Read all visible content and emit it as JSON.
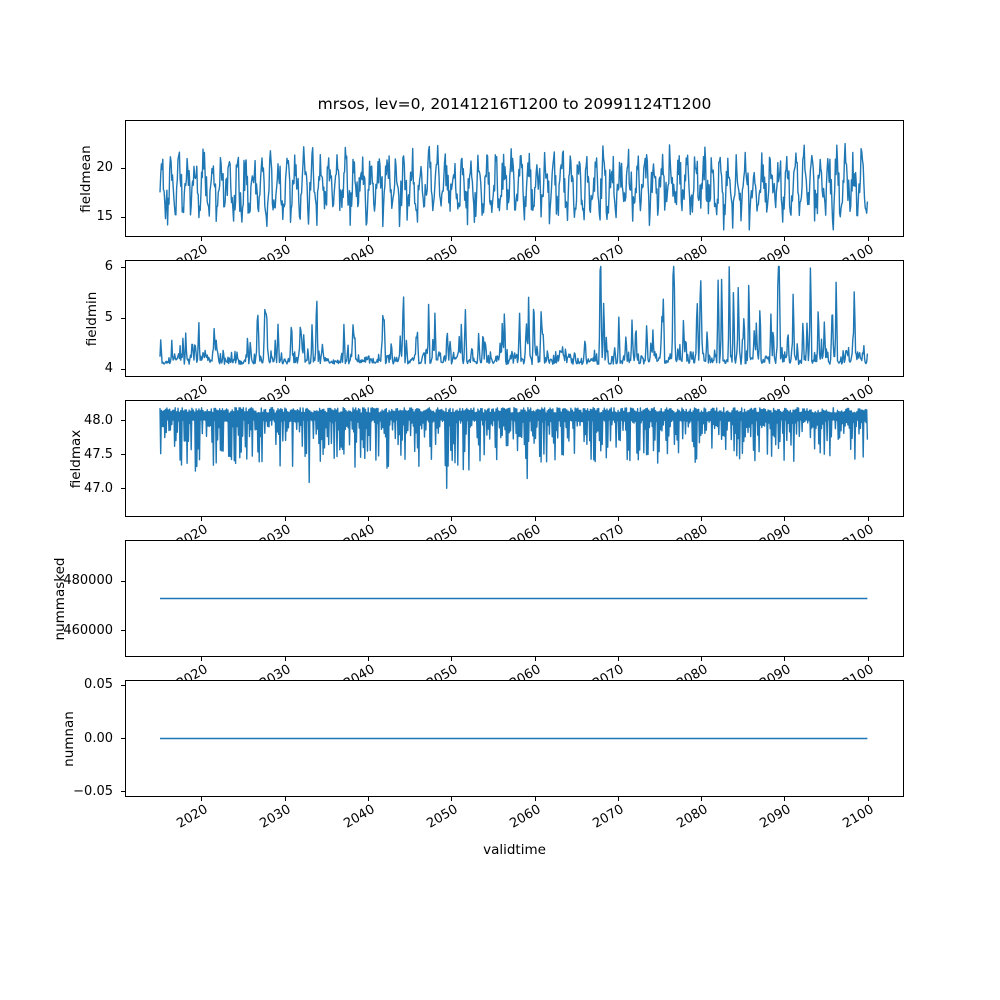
{
  "figure": {
    "title": "mrsos, lev=0, 20141216T1200 to 20991124T1200",
    "xlabel": "validtime",
    "background": "#ffffff",
    "line_color": "#1f77b4",
    "frame_color": "#000000"
  },
  "x_axis": {
    "label": "validtime",
    "lim": [
      2010.76,
      2104.3
    ],
    "ticks": [
      2020,
      2030,
      2040,
      2050,
      2060,
      2070,
      2080,
      2090,
      2100
    ],
    "tick_labels": [
      "2020",
      "2030",
      "2040",
      "2050",
      "2060",
      "2070",
      "2080",
      "2090",
      "2100"
    ],
    "tick_label_rotation_deg": 30,
    "data_start": 2014.96,
    "data_end": 2099.9
  },
  "chart_data": [
    {
      "type": "line",
      "ylabel": "fieldmean",
      "ylim": [
        12.95,
        24.95
      ],
      "yticks": [
        {
          "value": 20,
          "label": "20"
        },
        {
          "value": 15,
          "label": "15"
        }
      ],
      "grid": false,
      "legend": "none",
      "series": {
        "name": "fieldmean",
        "kind": "seasonal_noise",
        "n_points": 1020,
        "base": 18.2,
        "seasonal_amplitude": 2.3,
        "noise_scale": 2.2,
        "value_range": [
          13.6,
          24.4
        ],
        "seed": 101,
        "description": "noisy annual cycle oscillating ~14-24, roughly stationary 2015-2100"
      }
    },
    {
      "type": "line",
      "ylabel": "fieldmin",
      "ylim": [
        3.85,
        6.14
      ],
      "yticks": [
        {
          "value": 6,
          "label": "6"
        },
        {
          "value": 5,
          "label": "5"
        },
        {
          "value": 4,
          "label": "4"
        }
      ],
      "grid": false,
      "legend": "none",
      "series": {
        "name": "fieldmin",
        "kind": "spiky_up",
        "n_points": 1020,
        "base": 4.08,
        "bump_scale": 0.22,
        "spike_scale": 1.9,
        "spike_growth": [
          0.3,
          1.1
        ],
        "value_range": [
          3.97,
          6.03
        ],
        "seed": 202,
        "description": "baseline ~4.0-4.3 with upward spikes growing over time, peaks near 5.9 (~2048) and 6.0 (~2081)"
      }
    },
    {
      "type": "line",
      "ylabel": "fieldmax",
      "ylim": [
        46.59,
        48.3
      ],
      "yticks": [
        {
          "value": 48.0,
          "label": "48.0"
        },
        {
          "value": 47.5,
          "label": "47.5"
        },
        {
          "value": 47.0,
          "label": "47.0"
        }
      ],
      "grid": false,
      "legend": "none",
      "series": {
        "name": "fieldmax",
        "kind": "spiky_down",
        "n_points": 1020,
        "top": 48.15,
        "dip_scale": 0.78,
        "deep_dip": 0.5,
        "value_range": [
          46.68,
          48.22
        ],
        "seed": 303,
        "description": "dense band hugging ~48.15 with downward spikes to ~47.0-47.6, deepest ~46.7 near 2028, spikes shallower later"
      }
    },
    {
      "type": "line",
      "ylabel": "nummasked",
      "ylim": [
        449350,
        496650
      ],
      "yticks": [
        {
          "value": 480000,
          "label": "480000"
        },
        {
          "value": 460000,
          "label": "460000"
        }
      ],
      "grid": false,
      "legend": "none",
      "series": {
        "name": "nummasked",
        "kind": "constant",
        "n_points": 2,
        "value": 473000,
        "description": "constant number of masked points ~473000"
      }
    },
    {
      "type": "line",
      "ylabel": "numnan",
      "ylim": [
        -0.055,
        0.055
      ],
      "yticks": [
        {
          "value": 0.05,
          "label": "0.05"
        },
        {
          "value": 0.0,
          "label": "0.00"
        },
        {
          "value": -0.05,
          "label": "−0.05"
        }
      ],
      "grid": false,
      "legend": "none",
      "series": {
        "name": "numnan",
        "kind": "constant",
        "n_points": 2,
        "value": 0,
        "description": "constant zero NaN count"
      }
    }
  ]
}
